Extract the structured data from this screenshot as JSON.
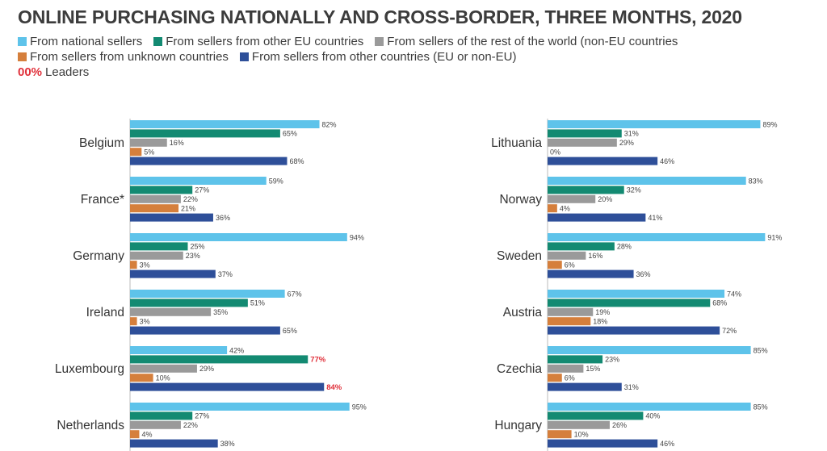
{
  "title": "ONLINE PURCHASING NATIONALLY AND CROSS-BORDER, THREE MONTHS, 2020",
  "legend": {
    "row1": [
      {
        "label": "From national sellers",
        "color": "#5ec3ea"
      },
      {
        "label": "From sellers from other EU countries",
        "color": "#138a72"
      },
      {
        "label": "From sellers of the rest of the world (non-EU countries",
        "color": "#9a9a9a"
      }
    ],
    "row2": [
      {
        "label": "From sellers from unknown countries",
        "color": "#d57f3c"
      },
      {
        "label": "From sellers from other countries (EU or non-EU)",
        "color": "#2e4f99"
      }
    ],
    "leaders_marker": "00%",
    "leaders_label": "Leaders"
  },
  "chart_data": {
    "type": "bar",
    "orientation": "horizontal",
    "title": "ONLINE PURCHASING NATIONALLY AND CROSS-BORDER, THREE MONTHS, 2020",
    "unit": "%",
    "xlim": [
      0,
      100
    ],
    "series": [
      {
        "name": "From national sellers",
        "color": "#5ec3ea"
      },
      {
        "name": "From sellers from other EU countries",
        "color": "#138a72"
      },
      {
        "name": "From sellers of the rest of the world (non-EU countries",
        "color": "#9a9a9a"
      },
      {
        "name": "From sellers from unknown countries",
        "color": "#d57f3c"
      },
      {
        "name": "From sellers from other countries (EU or non-EU)",
        "color": "#2e4f99"
      }
    ],
    "panels": [
      {
        "countries": [
          {
            "name": "Belgium",
            "values": [
              82,
              65,
              16,
              5,
              68
            ],
            "leaders": [
              false,
              false,
              false,
              false,
              false
            ]
          },
          {
            "name": "France*",
            "values": [
              59,
              27,
              22,
              21,
              36
            ],
            "leaders": [
              false,
              false,
              false,
              false,
              false
            ]
          },
          {
            "name": "Germany",
            "values": [
              94,
              25,
              23,
              3,
              37
            ],
            "leaders": [
              false,
              false,
              false,
              false,
              false
            ]
          },
          {
            "name": "Ireland",
            "values": [
              67,
              51,
              35,
              3,
              65
            ],
            "leaders": [
              false,
              false,
              false,
              false,
              false
            ]
          },
          {
            "name": "Luxembourg",
            "values": [
              42,
              77,
              29,
              10,
              84
            ],
            "leaders": [
              false,
              true,
              false,
              false,
              true
            ]
          },
          {
            "name": "Netherlands",
            "values": [
              95,
              27,
              22,
              4,
              38
            ],
            "leaders": [
              false,
              false,
              false,
              false,
              false
            ]
          }
        ]
      },
      {
        "countries": [
          {
            "name": "Lithuania",
            "values": [
              89,
              31,
              29,
              0,
              46
            ],
            "leaders": [
              false,
              false,
              false,
              false,
              false
            ]
          },
          {
            "name": "Norway",
            "values": [
              83,
              32,
              20,
              4,
              41
            ],
            "leaders": [
              false,
              false,
              false,
              false,
              false
            ]
          },
          {
            "name": "Sweden",
            "values": [
              91,
              28,
              16,
              6,
              36
            ],
            "leaders": [
              false,
              false,
              false,
              false,
              false
            ]
          },
          {
            "name": "Austria",
            "values": [
              74,
              68,
              19,
              18,
              72
            ],
            "leaders": [
              false,
              false,
              false,
              false,
              false
            ]
          },
          {
            "name": "Czechia",
            "values": [
              85,
              23,
              15,
              6,
              31
            ],
            "leaders": [
              false,
              false,
              false,
              false,
              false
            ]
          },
          {
            "name": "Hungary",
            "values": [
              85,
              40,
              26,
              10,
              46
            ],
            "leaders": [
              false,
              false,
              false,
              false,
              false
            ]
          }
        ]
      }
    ]
  }
}
